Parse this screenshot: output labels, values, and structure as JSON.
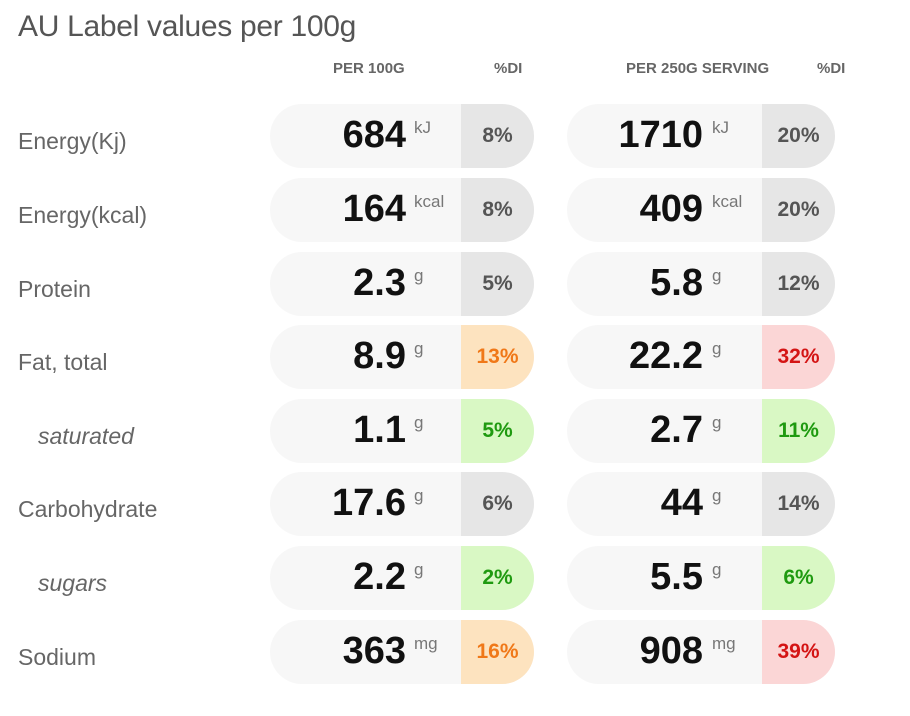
{
  "title": "AU Label values per 100g",
  "headers": {
    "per100": "PER 100G",
    "di1": "%DI",
    "perServing": "PER 250G SERVING",
    "di2": "%DI"
  },
  "colors": {
    "gray": "#e6e6e6",
    "orange": "#fde3bf",
    "green": "#d9f8c4",
    "red": "#fbd6d6"
  },
  "rows": [
    {
      "label": "Energy(Kj)",
      "sub": false,
      "v1": "684",
      "u1": "kJ",
      "d1": "8%",
      "c1": "gray",
      "v2": "1710",
      "u2": "kJ",
      "d2": "20%",
      "c2": "gray"
    },
    {
      "label": "Energy(kcal)",
      "sub": false,
      "v1": "164",
      "u1": "kcal",
      "d1": "8%",
      "c1": "gray",
      "v2": "409",
      "u2": "kcal",
      "d2": "20%",
      "c2": "gray"
    },
    {
      "label": "Protein",
      "sub": false,
      "v1": "2.3",
      "u1": "g",
      "d1": "5%",
      "c1": "gray",
      "v2": "5.8",
      "u2": "g",
      "d2": "12%",
      "c2": "gray"
    },
    {
      "label": "Fat, total",
      "sub": false,
      "v1": "8.9",
      "u1": "g",
      "d1": "13%",
      "c1": "orange",
      "v2": "22.2",
      "u2": "g",
      "d2": "32%",
      "c2": "red"
    },
    {
      "label": "saturated",
      "sub": true,
      "v1": "1.1",
      "u1": "g",
      "d1": "5%",
      "c1": "green",
      "v2": "2.7",
      "u2": "g",
      "d2": "11%",
      "c2": "green"
    },
    {
      "label": "Carbohydrate",
      "sub": false,
      "v1": "17.6",
      "u1": "g",
      "d1": "6%",
      "c1": "gray",
      "v2": "44",
      "u2": "g",
      "d2": "14%",
      "c2": "gray"
    },
    {
      "label": "sugars",
      "sub": true,
      "v1": "2.2",
      "u1": "g",
      "d1": "2%",
      "c1": "green",
      "v2": "5.5",
      "u2": "g",
      "d2": "6%",
      "c2": "green"
    },
    {
      "label": "Sodium",
      "sub": false,
      "v1": "363",
      "u1": "mg",
      "d1": "16%",
      "c1": "orange",
      "v2": "908",
      "u2": "mg",
      "d2": "39%",
      "c2": "red"
    }
  ]
}
